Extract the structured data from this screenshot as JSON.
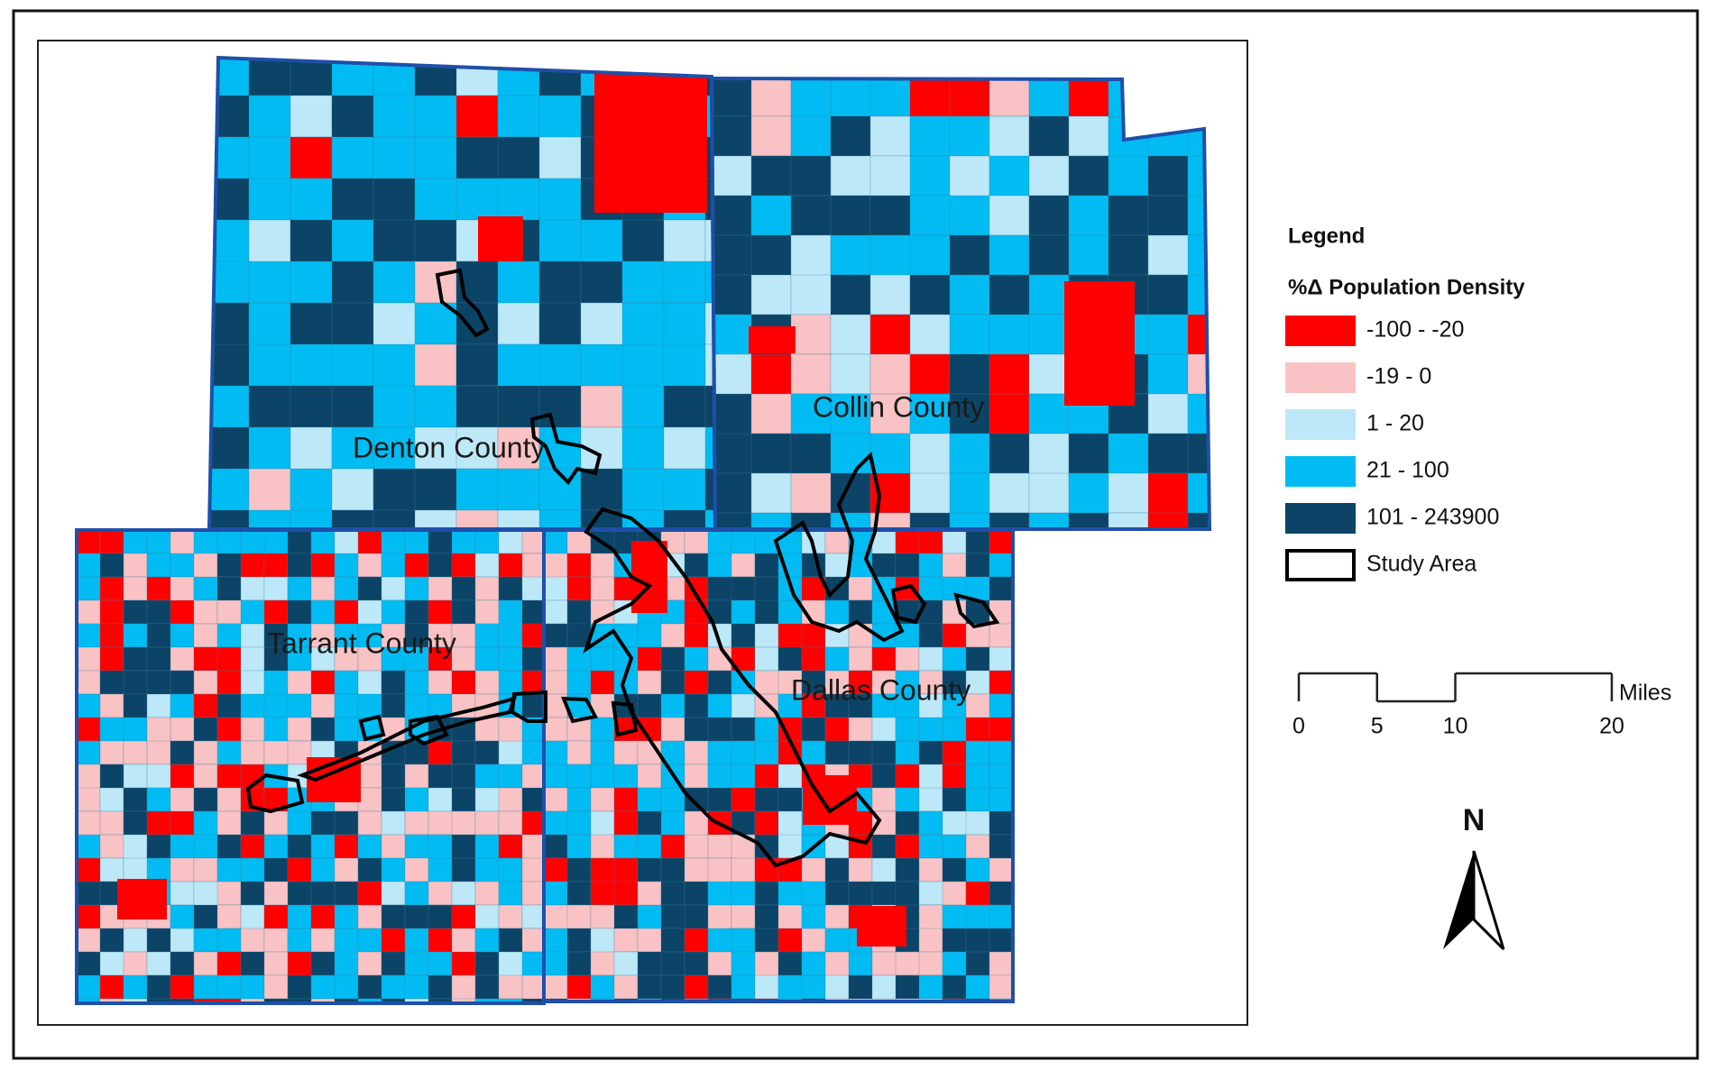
{
  "map": {
    "counties": [
      "Denton County",
      "Collin County",
      "Tarrant County",
      "Dallas County"
    ]
  },
  "legend": {
    "title": "Legend",
    "subtitle": "%Δ Population Density",
    "items": [
      {
        "label": "-100 - -20",
        "color": "#ff0000"
      },
      {
        "label": "-19 - 0",
        "color": "#f9c2c4"
      },
      {
        "label": "1 - 20",
        "color": "#bde8f8"
      },
      {
        "label": "21 - 100",
        "color": "#00bcf2"
      },
      {
        "label": "101 - 243900",
        "color": "#0b4466"
      },
      {
        "label": "Study Area",
        "color": "#000000",
        "style": "outline"
      }
    ]
  },
  "scale": {
    "ticks": [
      0,
      5,
      10,
      20
    ],
    "unit": "Miles"
  },
  "north": "N"
}
